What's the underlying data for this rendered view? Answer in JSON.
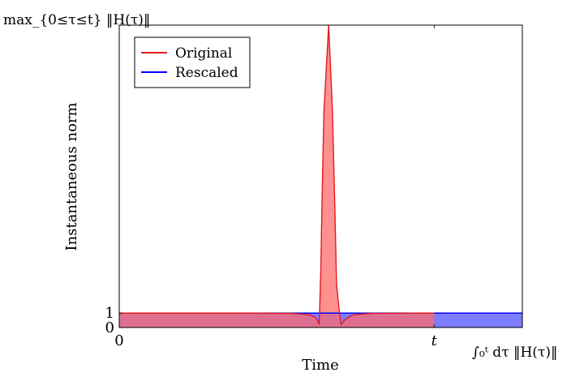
{
  "chart_data": {
    "type": "area",
    "title": "",
    "xlabel": "Time",
    "ylabel": "Instantaneous norm",
    "xlim": [
      0,
      1.28
    ],
    "ylim": [
      0,
      21
    ],
    "grid": false,
    "legend_position": "top-left",
    "x_ticks": [
      {
        "value": 0,
        "label": "0"
      },
      {
        "value": 1,
        "label": "t"
      }
    ],
    "y_ticks": [
      {
        "value": 0,
        "label": "0"
      },
      {
        "value": 1,
        "label": "1"
      }
    ],
    "corner_labels": {
      "y_top": "max_{0≤τ≤t} ‖H(τ)‖",
      "x_right": "∫₀ᵗ dτ ‖H(τ)‖"
    },
    "series": [
      {
        "name": "Original",
        "color": "#e41a1c",
        "fill": "#ff6b6b",
        "x": [
          0,
          0.4,
          0.55,
          0.6,
          0.62,
          0.63,
          0.635,
          0.64,
          0.645,
          0.65,
          0.665,
          0.677,
          0.685,
          0.69,
          0.7,
          0.705,
          0.715,
          0.73,
          0.75,
          0.8,
          0.95,
          1.0
        ],
        "y": [
          1.0,
          1.0,
          0.98,
          0.9,
          0.75,
          0.5,
          0.2,
          4.0,
          10.0,
          15.0,
          21.0,
          15.0,
          8.0,
          3.0,
          0.9,
          0.2,
          0.5,
          0.75,
          0.9,
          0.98,
          1.0,
          1.0
        ]
      },
      {
        "name": "Rescaled",
        "color": "#0000ff",
        "fill": "#6666ff",
        "x": [
          0,
          1.28
        ],
        "y": [
          1.0,
          1.0
        ]
      }
    ]
  }
}
